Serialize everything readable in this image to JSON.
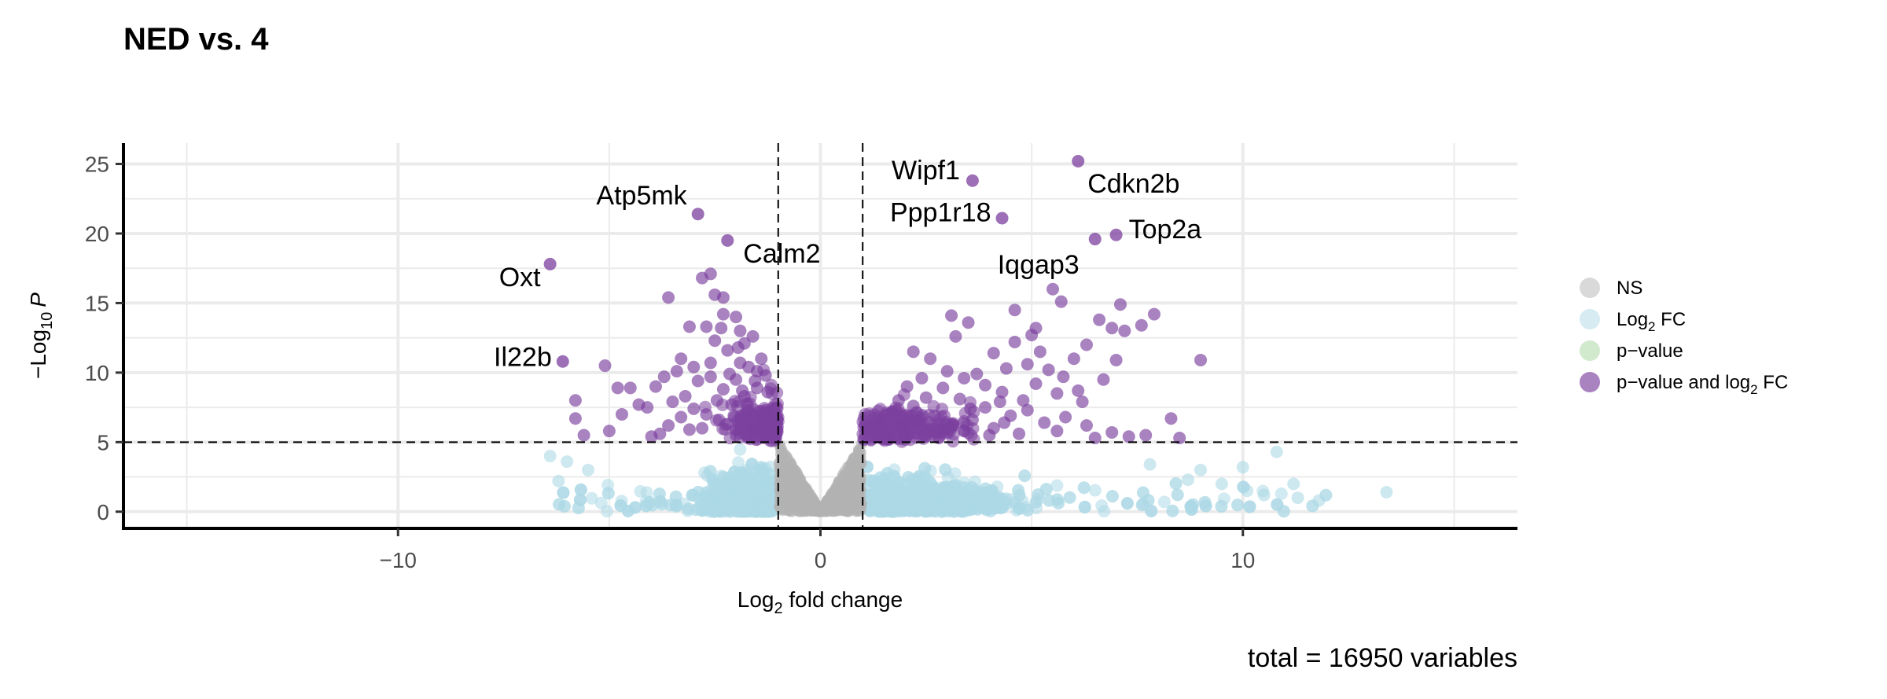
{
  "chart_data": {
    "type": "scatter",
    "title": "NED vs. 4",
    "caption": "total = 16950 variables",
    "xlabel": {
      "prefix": "Log",
      "sub": "2",
      "rest": " fold change"
    },
    "ylabel": {
      "prefix": "−Log",
      "sub": "10",
      "italic": "P"
    },
    "xlim": [
      -16.5,
      16.5
    ],
    "ylim": [
      -1.2,
      26.5
    ],
    "x_ticks": [
      {
        "value": -10,
        "label": "−10"
      },
      {
        "value": 0,
        "label": "0"
      },
      {
        "value": 10,
        "label": "10"
      }
    ],
    "y_ticks": [
      {
        "value": 0,
        "label": "0"
      },
      {
        "value": 5,
        "label": "5"
      },
      {
        "value": 10,
        "label": "10"
      },
      {
        "value": 15,
        "label": "15"
      },
      {
        "value": 20,
        "label": "20"
      },
      {
        "value": 25,
        "label": "25"
      }
    ],
    "x_minor_grid": [
      -15,
      -5,
      5,
      15
    ],
    "y_minor_grid": [
      2.5,
      7.5,
      12.5,
      17.5,
      22.5
    ],
    "grid": true,
    "cutoff_lines": {
      "log2fc": [
        -1,
        1
      ],
      "neg_log10_p": 5
    },
    "legend": {
      "position": "right",
      "entries": [
        {
          "key": "ns",
          "label": "NS",
          "color": "#b3b3b3"
        },
        {
          "key": "fc",
          "label": "Log",
          "sub": "2",
          "rest": " FC",
          "color": "#add8e6"
        },
        {
          "key": "p",
          "label": "p−value",
          "color": "#a3d39c"
        },
        {
          "key": "both",
          "label": "p−value and log",
          "sub": "2",
          "rest": " FC",
          "color": "#7b3f9e"
        }
      ]
    },
    "colors": {
      "ns": "#b3b3b3",
      "fc": "#add8e6",
      "p": "#a3d39c",
      "both": "#7b3f9e"
    },
    "labeled_points": [
      {
        "gene": "Cdkn2b",
        "x": 6.1,
        "y": 25.2
      },
      {
        "gene": "Wipf1",
        "x": 3.6,
        "y": 23.8
      },
      {
        "gene": "Atp5mk",
        "x": -2.9,
        "y": 21.4
      },
      {
        "gene": "Ppp1r18",
        "x": 4.3,
        "y": 21.1
      },
      {
        "gene": "Top2a",
        "x": 7.0,
        "y": 19.9
      },
      {
        "gene": "Calm2",
        "x": -2.2,
        "y": 19.5
      },
      {
        "gene": "Iqgap3",
        "x": 6.5,
        "y": 19.6
      },
      {
        "gene": "Oxt",
        "x": -6.4,
        "y": 17.8
      },
      {
        "gene": "Il22b",
        "x": -6.1,
        "y": 10.8
      }
    ],
    "series": [
      {
        "name": "p−value and log2 FC",
        "color": "#7b3f9e",
        "points": [
          [
            -5.1,
            10.5
          ],
          [
            -5.8,
            8.0
          ],
          [
            -4.8,
            8.9
          ],
          [
            -4.5,
            8.9
          ],
          [
            -4.3,
            7.7
          ],
          [
            -4.7,
            7.0
          ],
          [
            -5.0,
            5.8
          ],
          [
            -5.6,
            5.5
          ],
          [
            -5.8,
            6.7
          ],
          [
            -3.6,
            15.4
          ],
          [
            -2.8,
            16.8
          ],
          [
            -2.6,
            17.1
          ],
          [
            -2.5,
            15.6
          ],
          [
            -2.3,
            15.4
          ],
          [
            -3.1,
            13.3
          ],
          [
            -2.7,
            13.3
          ],
          [
            -2.3,
            14.2
          ],
          [
            -3.3,
            11.0
          ],
          [
            -3.4,
            10.1
          ],
          [
            -3.7,
            9.7
          ],
          [
            -3.9,
            9.0
          ],
          [
            -4.1,
            7.5
          ],
          [
            -3.2,
            8.3
          ],
          [
            -2.9,
            9.4
          ],
          [
            -2.5,
            12.3
          ],
          [
            -2.0,
            14.0
          ],
          [
            -1.9,
            13.0
          ],
          [
            -1.6,
            12.6
          ],
          [
            -1.8,
            12.1
          ],
          [
            -2.2,
            11.6
          ],
          [
            -1.4,
            11.0
          ],
          [
            -1.7,
            10.4
          ],
          [
            -2.0,
            9.5
          ],
          [
            -1.3,
            9.8
          ],
          [
            -2.6,
            10.7
          ],
          [
            -3.0,
            7.4
          ],
          [
            -3.3,
            6.8
          ],
          [
            -3.6,
            6.2
          ],
          [
            -3.8,
            5.6
          ],
          [
            -4.0,
            5.4
          ],
          [
            -2.8,
            6.0
          ],
          [
            -2.4,
            6.6
          ],
          [
            -2.1,
            7.7
          ],
          [
            -1.8,
            8.3
          ],
          [
            -1.5,
            8.9
          ],
          [
            -1.3,
            7.3
          ],
          [
            -1.1,
            6.4
          ],
          [
            -1.6,
            5.9
          ],
          [
            -2.0,
            5.5
          ],
          [
            -1.2,
            5.3
          ],
          [
            -2.3,
            8.8
          ],
          [
            -2.6,
            9.7
          ],
          [
            -1.9,
            10.7
          ],
          [
            -1.5,
            10.1
          ],
          [
            -2.2,
            6.3
          ],
          [
            -2.7,
            7.0
          ],
          [
            -3.1,
            5.9
          ],
          [
            -1.4,
            6.8
          ],
          [
            -1.7,
            7.2
          ],
          [
            -3.5,
            7.9
          ],
          [
            -1.95,
            11.8
          ],
          [
            -2.15,
            9.9
          ],
          [
            -1.55,
            9.4
          ],
          [
            -1.25,
            8.6
          ],
          [
            -2.45,
            8.0
          ],
          [
            -2.05,
            6.9
          ],
          [
            -1.15,
            5.8
          ],
          [
            -3.0,
            10.4
          ],
          [
            -2.35,
            13.2
          ],
          [
            -1.85,
            8.7
          ],
          [
            3.1,
            14.1
          ],
          [
            3.5,
            13.6
          ],
          [
            4.6,
            14.5
          ],
          [
            5.1,
            13.2
          ],
          [
            5.5,
            16.0
          ],
          [
            5.7,
            15.1
          ],
          [
            6.3,
            12.0
          ],
          [
            6.9,
            13.2
          ],
          [
            7.2,
            13.0
          ],
          [
            7.9,
            14.2
          ],
          [
            7.6,
            13.4
          ],
          [
            7.1,
            14.9
          ],
          [
            9.0,
            10.9
          ],
          [
            8.3,
            6.7
          ],
          [
            8.5,
            5.3
          ],
          [
            7.7,
            5.5
          ],
          [
            6.9,
            5.7
          ],
          [
            3.7,
            9.9
          ],
          [
            4.9,
            10.6
          ],
          [
            5.2,
            11.5
          ],
          [
            6.0,
            11.0
          ],
          [
            6.7,
            9.5
          ],
          [
            6.2,
            7.9
          ],
          [
            5.6,
            8.5
          ],
          [
            5.1,
            9.2
          ],
          [
            4.3,
            8.6
          ],
          [
            3.9,
            7.5
          ],
          [
            3.3,
            8.1
          ],
          [
            2.9,
            8.9
          ],
          [
            2.5,
            8.2
          ],
          [
            2.2,
            7.6
          ],
          [
            1.7,
            7.2
          ],
          [
            1.4,
            6.6
          ],
          [
            1.2,
            6.0
          ],
          [
            1.5,
            5.6
          ],
          [
            1.9,
            6.2
          ],
          [
            2.3,
            6.5
          ],
          [
            2.7,
            6.9
          ],
          [
            3.1,
            6.3
          ],
          [
            3.6,
            6.6
          ],
          [
            4.1,
            6.0
          ],
          [
            4.5,
            6.9
          ],
          [
            4.9,
            7.3
          ],
          [
            5.3,
            6.4
          ],
          [
            5.8,
            6.8
          ],
          [
            6.3,
            6.2
          ],
          [
            2.2,
            11.5
          ],
          [
            2.6,
            11.0
          ],
          [
            3.0,
            10.1
          ],
          [
            3.4,
            9.6
          ],
          [
            4.1,
            11.4
          ],
          [
            4.6,
            12.2
          ],
          [
            5.4,
            10.2
          ],
          [
            4.0,
            5.5
          ],
          [
            2.0,
            5.4
          ],
          [
            3.4,
            5.8
          ],
          [
            4.7,
            5.6
          ],
          [
            5.6,
            5.8
          ],
          [
            6.5,
            5.3
          ],
          [
            7.3,
            5.4
          ],
          [
            1.6,
            5.2
          ],
          [
            2.8,
            5.3
          ],
          [
            3.9,
            9.1
          ],
          [
            4.4,
            10.3
          ],
          [
            5.0,
            12.7
          ],
          [
            6.6,
            13.8
          ],
          [
            7.0,
            10.9
          ],
          [
            2.4,
            9.6
          ],
          [
            3.2,
            12.6
          ],
          [
            4.8,
            8.0
          ],
          [
            1.35,
            5.9
          ],
          [
            1.85,
            8.0
          ],
          [
            2.15,
            6.9
          ],
          [
            3.55,
            7.4
          ],
          [
            4.25,
            7.9
          ],
          [
            5.75,
            9.7
          ],
          [
            6.1,
            8.7
          ],
          [
            2.05,
            9.0
          ],
          [
            2.95,
            5.9
          ],
          [
            4.35,
            6.4
          ]
        ]
      }
    ]
  }
}
